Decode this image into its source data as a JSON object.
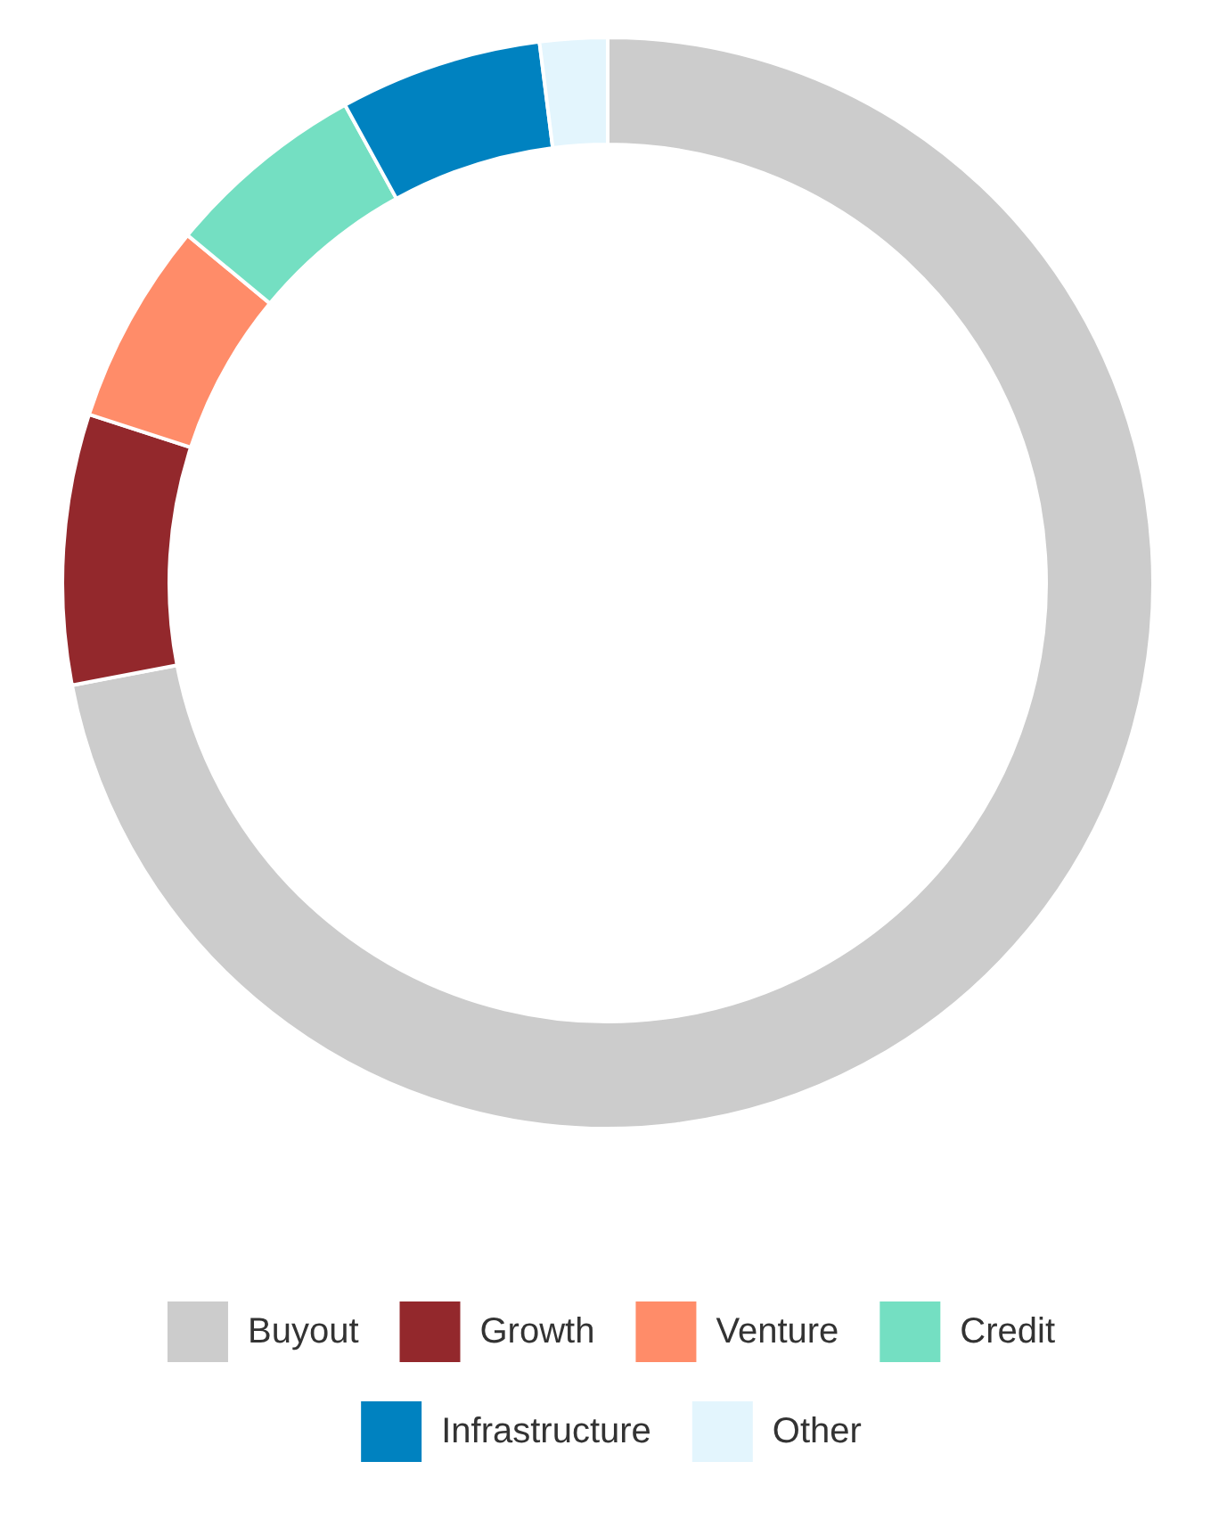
{
  "chart_data": {
    "type": "donut",
    "categories": [
      "Buyout",
      "Growth",
      "Venture",
      "Credit",
      "Infrastructure",
      "Other"
    ],
    "values": [
      72,
      8,
      6,
      6,
      6,
      2
    ],
    "colors": [
      "#cccccc",
      "#93282c",
      "#ff8c69",
      "#74dfc2",
      "#0082c0",
      "#e3f5fd"
    ],
    "legend": "bottom"
  }
}
